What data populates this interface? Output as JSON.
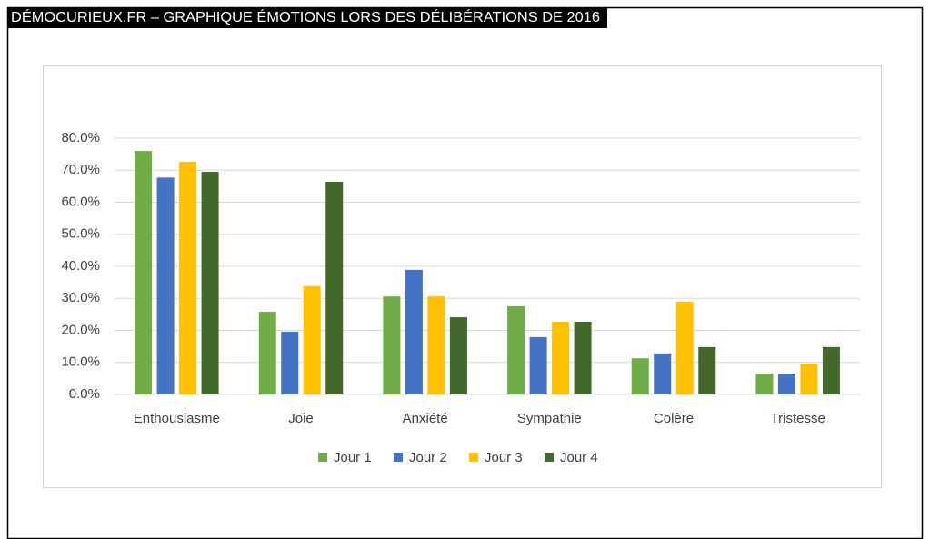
{
  "chart_data": {
    "type": "bar",
    "title": "DÉMOCURIEUX.FR – GRAPHIQUE ÉMOTIONS LORS DES DÉLIBÉRATIONS DE 2016",
    "categories": [
      "Enthousiasme",
      "Joie",
      "Anxiété",
      "Sympathie",
      "Colère",
      "Tristesse"
    ],
    "series": [
      {
        "name": "Jour 1",
        "color": "#70ad47",
        "values": [
          76.0,
          25.8,
          30.6,
          27.5,
          11.3,
          6.5
        ]
      },
      {
        "name": "Jour 2",
        "color": "#4472c4",
        "values": [
          67.7,
          19.6,
          38.9,
          17.9,
          12.8,
          6.5
        ]
      },
      {
        "name": "Jour 3",
        "color": "#ffc000",
        "values": [
          72.6,
          33.8,
          30.6,
          22.7,
          28.9,
          9.6
        ]
      },
      {
        "name": "Jour 4",
        "color": "#43682b",
        "values": [
          69.5,
          66.4,
          24.1,
          22.7,
          14.8,
          14.8
        ]
      }
    ],
    "ylim": [
      0,
      80
    ],
    "yticks": [
      {
        "value": 0,
        "label": "0.0%"
      },
      {
        "value": 10,
        "label": "10.0%"
      },
      {
        "value": 20,
        "label": "20.0%"
      },
      {
        "value": 30,
        "label": "30.0%"
      },
      {
        "value": 40,
        "label": "40.0%"
      },
      {
        "value": 50,
        "label": "50.0%"
      },
      {
        "value": 60,
        "label": "60.0%"
      },
      {
        "value": 70,
        "label": "70.0%"
      },
      {
        "value": 80,
        "label": "80.0%"
      }
    ],
    "grid": true,
    "legend": "bottom"
  }
}
